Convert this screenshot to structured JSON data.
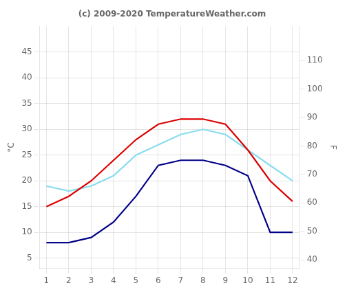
{
  "chart_data": {
    "type": "line",
    "title": "(c) 2009-2020 TemperatureWeather.com",
    "y_label": "°C",
    "y2_label": "F",
    "x": [
      1,
      2,
      3,
      4,
      5,
      6,
      7,
      8,
      9,
      10,
      11,
      12
    ],
    "series": [
      {
        "color": "#dd0000",
        "values": [
          15,
          17,
          20,
          24,
          28,
          31,
          32,
          32,
          31,
          26,
          20,
          16
        ]
      },
      {
        "color": "#88ddee",
        "values": [
          19,
          18,
          19,
          21,
          25,
          27,
          29,
          30,
          29,
          26,
          23,
          20
        ]
      },
      {
        "color": "#000088",
        "values": [
          8,
          8,
          9,
          12,
          17,
          23,
          24,
          24,
          23,
          21,
          10,
          10
        ]
      }
    ],
    "xlim": [
      0.7,
      12.3
    ],
    "xticks": [
      1,
      2,
      3,
      4,
      5,
      6,
      7,
      8,
      9,
      10,
      11,
      12
    ],
    "ylim": [
      3,
      50
    ],
    "yticks": [
      5,
      10,
      15,
      20,
      25,
      30,
      35,
      40,
      45
    ],
    "y2lim": [
      37,
      122
    ],
    "y2ticks": [
      40,
      50,
      60,
      70,
      80,
      90,
      100,
      110
    ],
    "grid": true
  }
}
